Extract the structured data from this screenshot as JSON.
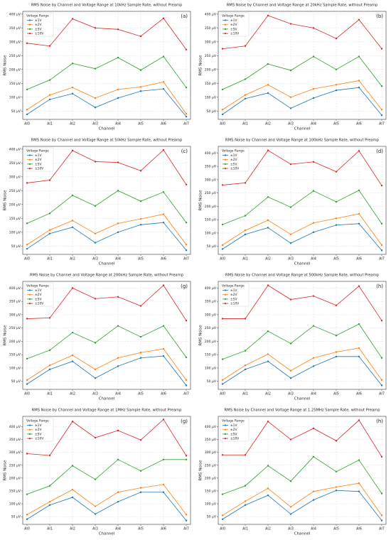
{
  "chart_data": [
    {
      "type": "line",
      "title": "RMS Noise by Channel and Voltage Range at 10kHz Sample Rate, without Preamp",
      "panel_label": "(a)",
      "xlabel": "Channel",
      "ylabel": "RMS Noise",
      "legend_title": "Voltage Range",
      "legend": "upper left",
      "grid": true,
      "categories": [
        "AI0",
        "AI1",
        "AI2",
        "AI3",
        "AI4",
        "AI5",
        "AI6",
        "AI7"
      ],
      "ylim": [
        20,
        410
      ],
      "yticks": [
        {
          "value": 50,
          "label": "50 µV"
        },
        {
          "value": 100,
          "label": "100 µV"
        },
        {
          "value": 150,
          "label": "150 µV"
        },
        {
          "value": 200,
          "label": "200 µV"
        },
        {
          "value": 250,
          "label": "250 µV"
        },
        {
          "value": 300,
          "label": "300 µV"
        },
        {
          "value": 350,
          "label": "350 µV"
        },
        {
          "value": 400,
          "label": "400 µV"
        }
      ],
      "series": [
        {
          "name": "±1V",
          "color": "#1f77b4",
          "values": [
            38,
            92,
            113,
            63,
            97,
            122,
            130,
            30
          ]
        },
        {
          "name": "±2V",
          "color": "#ff7f0e",
          "values": [
            55,
            108,
            135,
            97,
            128,
            137,
            155,
            40
          ]
        },
        {
          "name": "±5V",
          "color": "#2ca02c",
          "values": [
            128,
            162,
            222,
            203,
            243,
            198,
            247,
            135
          ]
        },
        {
          "name": "±10V",
          "color": "#d62728",
          "values": [
            295,
            285,
            383,
            350,
            345,
            320,
            385,
            272
          ]
        }
      ]
    },
    {
      "type": "line",
      "title": "RMS Noise by Channel and Voltage Range at 20kHz Sample Rate, without Preamp",
      "panel_label": "(b)",
      "xlabel": "Channel",
      "ylabel": "RMS Noise",
      "legend_title": "Voltage Range",
      "legend": "upper left",
      "grid": true,
      "categories": [
        "AI0",
        "AI1",
        "AI2",
        "AI3",
        "AI4",
        "AI5",
        "AI6",
        "AI7"
      ],
      "ylim": [
        20,
        410
      ],
      "yticks": [
        {
          "value": 50,
          "label": "50 µV"
        },
        {
          "value": 100,
          "label": "100 µV"
        },
        {
          "value": 150,
          "label": "150 µV"
        },
        {
          "value": 200,
          "label": "200 µV"
        },
        {
          "value": 250,
          "label": "250 µV"
        },
        {
          "value": 300,
          "label": "300 µV"
        },
        {
          "value": 350,
          "label": "350 µV"
        },
        {
          "value": 400,
          "label": "400 µV"
        }
      ],
      "series": [
        {
          "name": "±1V",
          "color": "#1f77b4",
          "values": [
            38,
            95,
            115,
            60,
            97,
            125,
            135,
            35
          ]
        },
        {
          "name": "±2V",
          "color": "#ff7f0e",
          "values": [
            55,
            108,
            145,
            100,
            130,
            145,
            160,
            55
          ]
        },
        {
          "name": "±5V",
          "color": "#2ca02c",
          "values": [
            128,
            165,
            220,
            197,
            247,
            200,
            247,
            140
          ]
        },
        {
          "name": "±10V",
          "color": "#d62728",
          "values": [
            275,
            285,
            395,
            365,
            350,
            312,
            380,
            275
          ]
        }
      ]
    },
    {
      "type": "line",
      "title": "RMS Noise by Channel and Voltage Range at 50kHz Sample Rate, without Preamp",
      "panel_label": "(c)",
      "xlabel": "Channel",
      "ylabel": "RMS Noise",
      "legend_title": "Voltage Range",
      "legend": "upper left",
      "grid": true,
      "categories": [
        "AI0",
        "AI1",
        "AI2",
        "AI3",
        "AI4",
        "AI5",
        "AI6",
        "AI7"
      ],
      "ylim": [
        20,
        410
      ],
      "yticks": [
        {
          "value": 50,
          "label": "50 µV"
        },
        {
          "value": 100,
          "label": "100 µV"
        },
        {
          "value": 150,
          "label": "150 µV"
        },
        {
          "value": 200,
          "label": "200 µV"
        },
        {
          "value": 250,
          "label": "250 µV"
        },
        {
          "value": 300,
          "label": "300 µV"
        },
        {
          "value": 350,
          "label": "350 µV"
        },
        {
          "value": 400,
          "label": "400 µV"
        }
      ],
      "series": [
        {
          "name": "±1V",
          "color": "#1f77b4",
          "values": [
            40,
            95,
            118,
            62,
            100,
            127,
            135,
            35
          ]
        },
        {
          "name": "±2V",
          "color": "#ff7f0e",
          "values": [
            55,
            108,
            142,
            95,
            132,
            148,
            165,
            55
          ]
        },
        {
          "name": "±5V",
          "color": "#2ca02c",
          "values": [
            132,
            168,
            233,
            195,
            250,
            212,
            245,
            135
          ]
        },
        {
          "name": "±10V",
          "color": "#d62728",
          "values": [
            278,
            288,
            395,
            355,
            352,
            322,
            397,
            272
          ]
        }
      ]
    },
    {
      "type": "line",
      "title": "RMS Noise by Channel and Voltage Range at 100kHz Sample Rate, without Preamp",
      "panel_label": "(d)",
      "xlabel": "Channel",
      "ylabel": "RMS Noise",
      "legend_title": "Voltage Range",
      "legend": "upper left",
      "grid": true,
      "categories": [
        "AI0",
        "AI1",
        "AI2",
        "AI3",
        "AI4",
        "AI5",
        "AI6",
        "AI7"
      ],
      "ylim": [
        20,
        425
      ],
      "yticks": [
        {
          "value": 50,
          "label": "50 µV"
        },
        {
          "value": 100,
          "label": "100 µV"
        },
        {
          "value": 150,
          "label": "150 µV"
        },
        {
          "value": 200,
          "label": "200 µV"
        },
        {
          "value": 250,
          "label": "250 µV"
        },
        {
          "value": 300,
          "label": "300 µV"
        },
        {
          "value": 350,
          "label": "350 µV"
        },
        {
          "value": 400,
          "label": "400 µV"
        }
      ],
      "series": [
        {
          "name": "±1V",
          "color": "#1f77b4",
          "values": [
            40,
            95,
            120,
            62,
            103,
            130,
            135,
            35
          ]
        },
        {
          "name": "±2V",
          "color": "#ff7f0e",
          "values": [
            55,
            110,
            148,
            95,
            138,
            155,
            172,
            55
          ]
        },
        {
          "name": "±5V",
          "color": "#2ca02c",
          "values": [
            132,
            165,
            235,
            197,
            258,
            217,
            260,
            135
          ]
        },
        {
          "name": "±10V",
          "color": "#d62728",
          "values": [
            280,
            288,
            410,
            358,
            367,
            330,
            408,
            278
          ]
        }
      ]
    },
    {
      "type": "line",
      "title": "RMS Noise by Channel and Voltage Range at 200kHz Sample Rate, without Preamp",
      "panel_label": "(g)",
      "xlabel": "Channel",
      "ylabel": "RMS Noise",
      "legend_title": "Voltage Range",
      "legend": "upper left",
      "grid": true,
      "categories": [
        "AI0",
        "AI1",
        "AI2",
        "AI3",
        "AI4",
        "AI5",
        "AI6",
        "AI7"
      ],
      "ylim": [
        20,
        425
      ],
      "yticks": [
        {
          "value": 50,
          "label": "50 µV"
        },
        {
          "value": 100,
          "label": "100 µV"
        },
        {
          "value": 150,
          "label": "150 µV"
        },
        {
          "value": 200,
          "label": "200 µV"
        },
        {
          "value": 250,
          "label": "250 µV"
        },
        {
          "value": 300,
          "label": "300 µV"
        },
        {
          "value": 350,
          "label": "350 µV"
        },
        {
          "value": 400,
          "label": "400 µV"
        }
      ],
      "series": [
        {
          "name": "±1V",
          "color": "#1f77b4",
          "values": [
            40,
            95,
            125,
            62,
            107,
            138,
            145,
            35
          ]
        },
        {
          "name": "±2V",
          "color": "#ff7f0e",
          "values": [
            55,
            110,
            148,
            95,
            138,
            158,
            172,
            55
          ]
        },
        {
          "name": "±5V",
          "color": "#2ca02c",
          "values": [
            135,
            167,
            233,
            195,
            258,
            217,
            258,
            140
          ]
        },
        {
          "name": "±10V",
          "color": "#d62728",
          "values": [
            285,
            288,
            400,
            360,
            367,
            333,
            410,
            278
          ]
        }
      ]
    },
    {
      "type": "line",
      "title": "RMS Noise by Channel and Voltage Range at 500kHz Sample Rate, without Preamp",
      "panel_label": "(h)",
      "xlabel": "Channel",
      "ylabel": "RMS Noise",
      "legend_title": "Voltage Range",
      "legend": "upper left",
      "grid": true,
      "categories": [
        "AI0",
        "AI1",
        "AI2",
        "AI3",
        "AI4",
        "AI5",
        "AI6",
        "AI7"
      ],
      "ylim": [
        20,
        425
      ],
      "yticks": [
        {
          "value": 50,
          "label": "50 µV"
        },
        {
          "value": 100,
          "label": "100 µV"
        },
        {
          "value": 150,
          "label": "150 µV"
        },
        {
          "value": 200,
          "label": "200 µV"
        },
        {
          "value": 250,
          "label": "250 µV"
        },
        {
          "value": 300,
          "label": "300 µV"
        },
        {
          "value": 350,
          "label": "350 µV"
        },
        {
          "value": 400,
          "label": "400 µV"
        }
      ],
      "series": [
        {
          "name": "±1V",
          "color": "#1f77b4",
          "values": [
            40,
            95,
            125,
            62,
            107,
            143,
            143,
            35
          ]
        },
        {
          "name": "±2V",
          "color": "#ff7f0e",
          "values": [
            55,
            110,
            152,
            90,
            138,
            160,
            175,
            55
          ]
        },
        {
          "name": "±5V",
          "color": "#2ca02c",
          "values": [
            133,
            165,
            238,
            192,
            258,
            222,
            265,
            138
          ]
        },
        {
          "name": "±10V",
          "color": "#d62728",
          "values": [
            285,
            285,
            410,
            357,
            370,
            335,
            407,
            278
          ]
        }
      ]
    },
    {
      "type": "line",
      "title": "RMS Noise by Channel and Voltage Range at 1MHz Sample Rate, without Preamp",
      "panel_label": "(g)",
      "xlabel": "Channel",
      "ylabel": "RMS Noise",
      "legend_title": "Voltage Range",
      "legend": "upper left",
      "grid": true,
      "categories": [
        "AI0",
        "AI1",
        "AI2",
        "AI3",
        "AI4",
        "AI5",
        "AI6",
        "AI7"
      ],
      "ylim": [
        20,
        440
      ],
      "yticks": [
        {
          "value": 50,
          "label": "50 µV"
        },
        {
          "value": 100,
          "label": "100 µV"
        },
        {
          "value": 150,
          "label": "150 µV"
        },
        {
          "value": 200,
          "label": "200 µV"
        },
        {
          "value": 250,
          "label": "250 µV"
        },
        {
          "value": 300,
          "label": "300 µV"
        },
        {
          "value": 350,
          "label": "350 µV"
        },
        {
          "value": 400,
          "label": "400 µV"
        }
      ],
      "series": [
        {
          "name": "±1V",
          "color": "#1f77b4",
          "values": [
            40,
            95,
            125,
            60,
            108,
            145,
            145,
            35
          ]
        },
        {
          "name": "±2V",
          "color": "#ff7f0e",
          "values": [
            58,
            108,
            155,
            90,
            145,
            162,
            175,
            58
          ]
        },
        {
          "name": "±5V",
          "color": "#2ca02c",
          "values": [
            137,
            170,
            248,
            195,
            272,
            228,
            272,
            272
          ]
        },
        {
          "name": "±10V",
          "color": "#d62728",
          "values": [
            295,
            288,
            420,
            357,
            385,
            348,
            428,
            287
          ]
        }
      ]
    },
    {
      "type": "line",
      "title": "RMS Noise by Channel and Voltage Range at 1.25MHz Sample Rate, without Preamp",
      "panel_label": "(h)",
      "xlabel": "Channel",
      "ylabel": "RMS Noise",
      "legend_title": "Voltage Range",
      "legend": "upper left",
      "grid": true,
      "categories": [
        "AI0",
        "AI1",
        "AI2",
        "AI3",
        "AI4",
        "AI5",
        "AI6",
        "AI7"
      ],
      "ylim": [
        20,
        440
      ],
      "yticks": [
        {
          "value": 50,
          "label": "50 µV"
        },
        {
          "value": 100,
          "label": "100 µV"
        },
        {
          "value": 150,
          "label": "150 µV"
        },
        {
          "value": 200,
          "label": "200 µV"
        },
        {
          "value": 250,
          "label": "250 µV"
        },
        {
          "value": 300,
          "label": "300 µV"
        },
        {
          "value": 350,
          "label": "350 µV"
        },
        {
          "value": 400,
          "label": "400 µV"
        }
      ],
      "series": [
        {
          "name": "±1V",
          "color": "#1f77b4",
          "values": [
            40,
            95,
            133,
            60,
            115,
            152,
            148,
            35
          ]
        },
        {
          "name": "±2V",
          "color": "#ff7f0e",
          "values": [
            55,
            110,
            160,
            88,
            148,
            165,
            180,
            55
          ]
        },
        {
          "name": "±5V",
          "color": "#2ca02c",
          "values": [
            137,
            170,
            248,
            188,
            283,
            225,
            270,
            140
          ]
        },
        {
          "name": "±10V",
          "color": "#d62728",
          "values": [
            290,
            290,
            420,
            350,
            393,
            345,
            425,
            283
          ]
        }
      ]
    }
  ]
}
